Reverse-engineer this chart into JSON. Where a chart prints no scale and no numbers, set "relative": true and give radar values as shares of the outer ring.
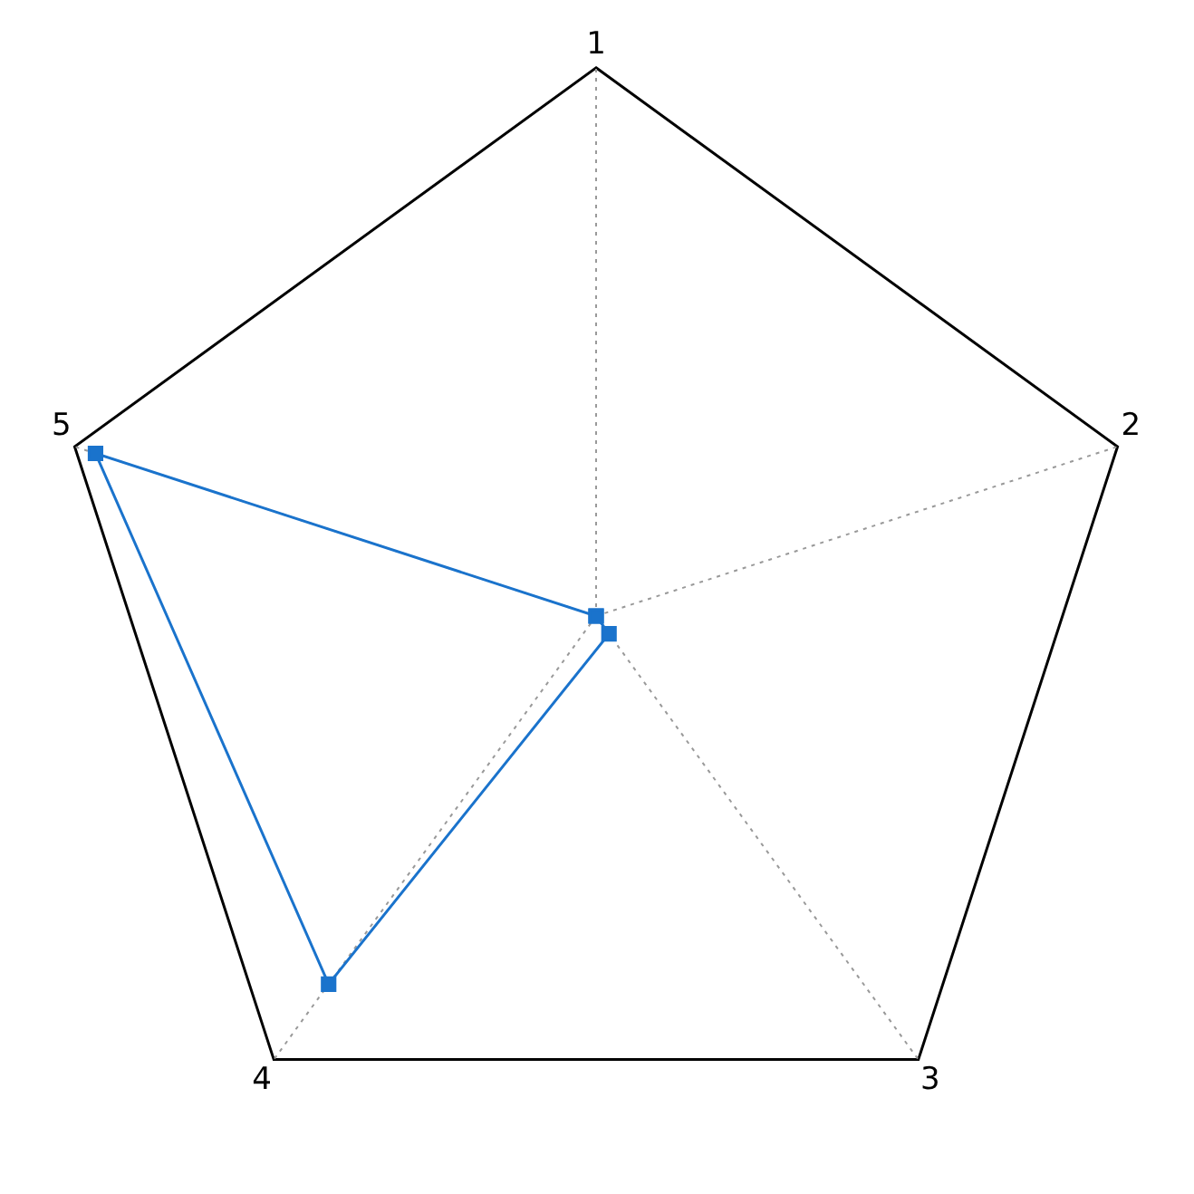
{
  "chart_data": {
    "type": "radar",
    "categories": [
      "1",
      "2",
      "3",
      "4",
      "5"
    ],
    "relative": true,
    "marker": "square",
    "legend": false,
    "grid": true,
    "series": [
      {
        "color": "#1a73cc",
        "values": [
          0,
          0,
          0.04,
          0.83,
          0.96
        ]
      }
    ]
  }
}
